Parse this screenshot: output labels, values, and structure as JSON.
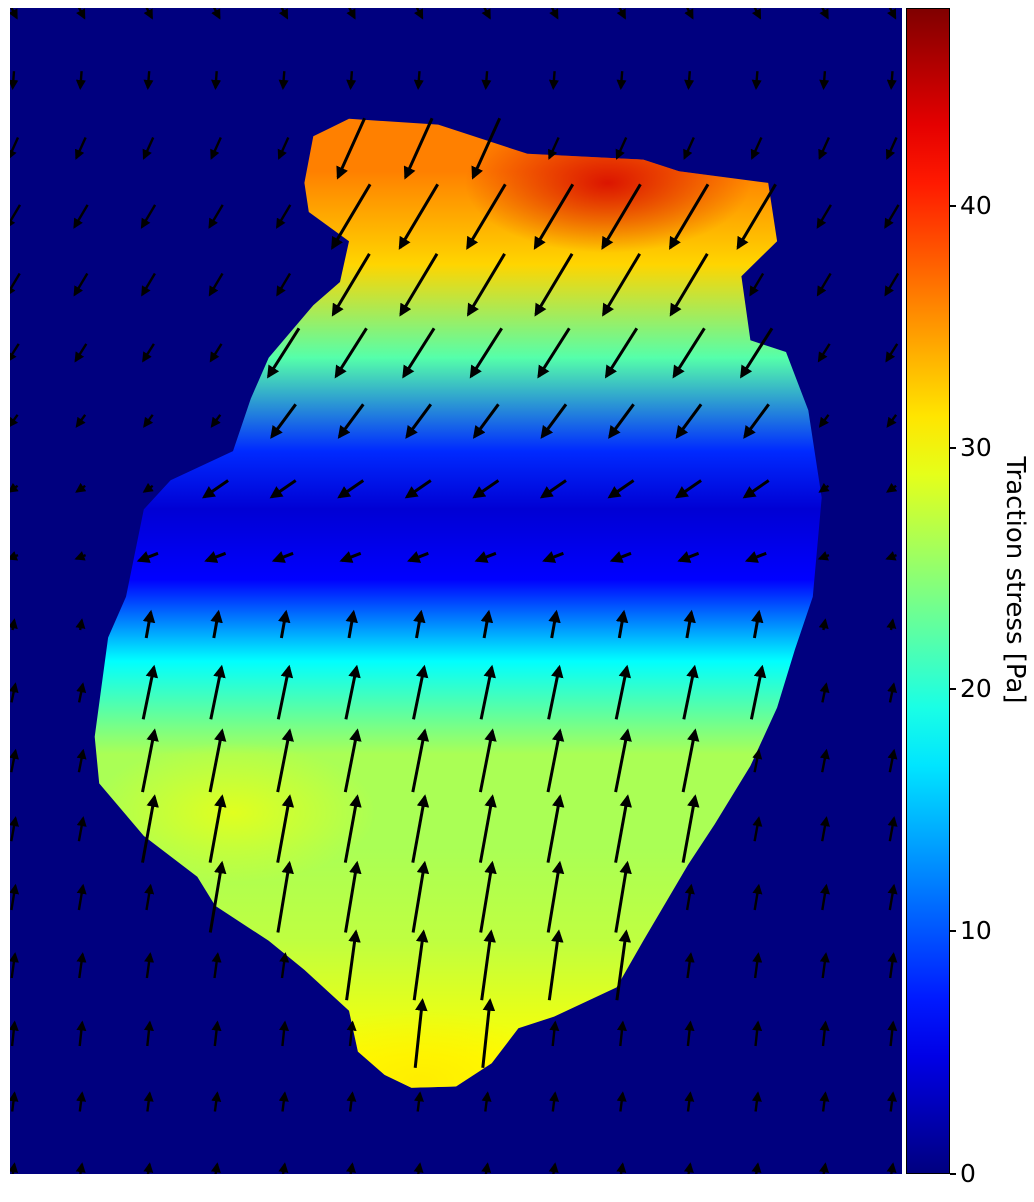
{
  "chart_data": {
    "type": "heatmap",
    "subtype": "vector-field-overlay",
    "title": "",
    "xlabel": "",
    "ylabel": "",
    "axes_visible": false,
    "grid": false,
    "colormap": "jet",
    "background_color": "#00007f",
    "arrow_color": "#000000",
    "colorbar": {
      "label": "Traction stress [Pa]",
      "range": [
        0,
        48
      ],
      "ticks": [
        0,
        10,
        20,
        30,
        40
      ],
      "tick_labels": [
        "0",
        "10",
        "20",
        "30",
        "40"
      ],
      "placement": "right"
    },
    "cell_outline_boundary": [
      [
        0.34,
        0.11
      ],
      [
        0.38,
        0.095
      ],
      [
        0.48,
        0.1
      ],
      [
        0.58,
        0.125
      ],
      [
        0.71,
        0.13
      ],
      [
        0.75,
        0.14
      ],
      [
        0.85,
        0.15
      ],
      [
        0.86,
        0.2
      ],
      [
        0.82,
        0.23
      ],
      [
        0.83,
        0.285
      ],
      [
        0.87,
        0.295
      ],
      [
        0.895,
        0.345
      ],
      [
        0.91,
        0.42
      ],
      [
        0.9,
        0.505
      ],
      [
        0.88,
        0.55
      ],
      [
        0.86,
        0.6
      ],
      [
        0.83,
        0.65
      ],
      [
        0.79,
        0.7
      ],
      [
        0.76,
        0.735
      ],
      [
        0.71,
        0.8
      ],
      [
        0.68,
        0.84
      ],
      [
        0.61,
        0.865
      ],
      [
        0.57,
        0.875
      ],
      [
        0.54,
        0.905
      ],
      [
        0.5,
        0.925
      ],
      [
        0.45,
        0.926
      ],
      [
        0.42,
        0.915
      ],
      [
        0.39,
        0.895
      ],
      [
        0.38,
        0.86
      ],
      [
        0.33,
        0.825
      ],
      [
        0.29,
        0.8
      ],
      [
        0.23,
        0.77
      ],
      [
        0.21,
        0.745
      ],
      [
        0.15,
        0.71
      ],
      [
        0.1,
        0.665
      ],
      [
        0.095,
        0.625
      ],
      [
        0.11,
        0.54
      ],
      [
        0.13,
        0.505
      ],
      [
        0.15,
        0.43
      ],
      [
        0.18,
        0.405
      ],
      [
        0.25,
        0.38
      ],
      [
        0.27,
        0.335
      ],
      [
        0.29,
        0.3
      ],
      [
        0.34,
        0.255
      ],
      [
        0.37,
        0.235
      ],
      [
        0.38,
        0.2
      ],
      [
        0.335,
        0.175
      ],
      [
        0.33,
        0.15
      ]
    ],
    "stress_field": [
      {
        "y": 0.14,
        "value": 36
      },
      {
        "y": 0.22,
        "value": 32
      },
      {
        "y": 0.3,
        "value": 22
      },
      {
        "y": 0.38,
        "value": 8
      },
      {
        "y": 0.43,
        "value": 4
      },
      {
        "y": 0.49,
        "value": 6
      },
      {
        "y": 0.56,
        "value": 18
      },
      {
        "y": 0.64,
        "value": 26
      },
      {
        "y": 0.72,
        "value": 26
      },
      {
        "y": 0.8,
        "value": 27
      },
      {
        "y": 0.9,
        "value": 30
      }
    ],
    "stress_hotspots": [
      {
        "x": 0.67,
        "y": 0.15,
        "value": 44
      },
      {
        "x": 0.25,
        "y": 0.69,
        "value": 29
      },
      {
        "x": 0.46,
        "y": 0.92,
        "value": 31
      }
    ],
    "vector_grid": {
      "rows": 18,
      "cols": 14,
      "x_range": [
        0.0,
        1.0
      ],
      "y_range": [
        0.0,
        1.0
      ]
    },
    "vector_field": [
      {
        "y": 0.0,
        "vx": 0.17,
        "vy": 0.3
      },
      {
        "y": 0.15,
        "vx": -0.32,
        "vy": 0.54
      },
      {
        "y": 0.25,
        "vx": -0.3,
        "vy": 0.5
      },
      {
        "y": 0.35,
        "vx": -0.2,
        "vy": 0.28
      },
      {
        "y": 0.42,
        "vx": -0.2,
        "vy": 0.12
      },
      {
        "y": 0.48,
        "vx": -0.15,
        "vy": 0.05
      },
      {
        "y": 0.52,
        "vx": 0.03,
        "vy": -0.18
      },
      {
        "y": 0.6,
        "vx": 0.1,
        "vy": -0.48
      },
      {
        "y": 0.75,
        "vx": 0.1,
        "vy": -0.58
      },
      {
        "y": 0.88,
        "vx": 0.06,
        "vy": -0.56
      },
      {
        "y": 1.0,
        "vx": 0.05,
        "vy": -0.3
      }
    ]
  }
}
